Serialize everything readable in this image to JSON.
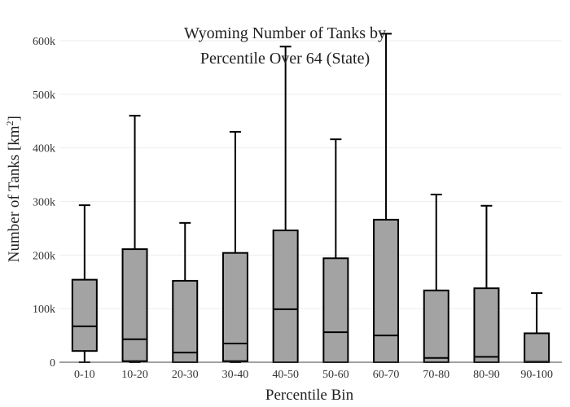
{
  "chart_data": {
    "type": "box",
    "title_lines": [
      "Wyoming Number of Tanks by",
      "Percentile Over 64 (State)"
    ],
    "xlabel": "Percentile Bin",
    "ylabel_main": "Number of Tanks  [km",
    "ylabel_sup": "2",
    "ylabel_end": "]",
    "ylim": [
      0,
      600000
    ],
    "yticks": [
      0,
      100000,
      200000,
      300000,
      400000,
      500000,
      600000
    ],
    "ytick_labels": [
      "0",
      "100k",
      "200k",
      "300k",
      "400k",
      "500k",
      "600k"
    ],
    "grid": true,
    "colors": {
      "box_fill": "#a3a3a3",
      "stroke": "#000000",
      "grid": "#eeeeee"
    },
    "categories": [
      "0-10",
      "10-20",
      "20-30",
      "30-40",
      "40-50",
      "50-60",
      "60-70",
      "70-80",
      "80-90",
      "90-100"
    ],
    "boxes": [
      {
        "min": 0,
        "q1": 21000,
        "median": 67000,
        "q3": 154000,
        "max": 293000
      },
      {
        "min": 0,
        "q1": 2000,
        "median": 43000,
        "q3": 211000,
        "max": 460000
      },
      {
        "min": 0,
        "q1": 0,
        "median": 18000,
        "q3": 152000,
        "max": 260000
      },
      {
        "min": 0,
        "q1": 2000,
        "median": 35000,
        "q3": 204000,
        "max": 430000
      },
      {
        "min": 0,
        "q1": 0,
        "median": 99000,
        "q3": 246000,
        "max": 589000
      },
      {
        "min": 0,
        "q1": 0,
        "median": 56000,
        "q3": 194000,
        "max": 416000
      },
      {
        "min": 0,
        "q1": 0,
        "median": 50000,
        "q3": 266000,
        "max": 613000
      },
      {
        "min": 0,
        "q1": 0,
        "median": 8000,
        "q3": 134000,
        "max": 313000
      },
      {
        "min": 0,
        "q1": 0,
        "median": 10000,
        "q3": 138000,
        "max": 292000
      },
      {
        "min": 0,
        "q1": 0,
        "median": 1000,
        "q3": 54000,
        "max": 129000
      }
    ]
  }
}
